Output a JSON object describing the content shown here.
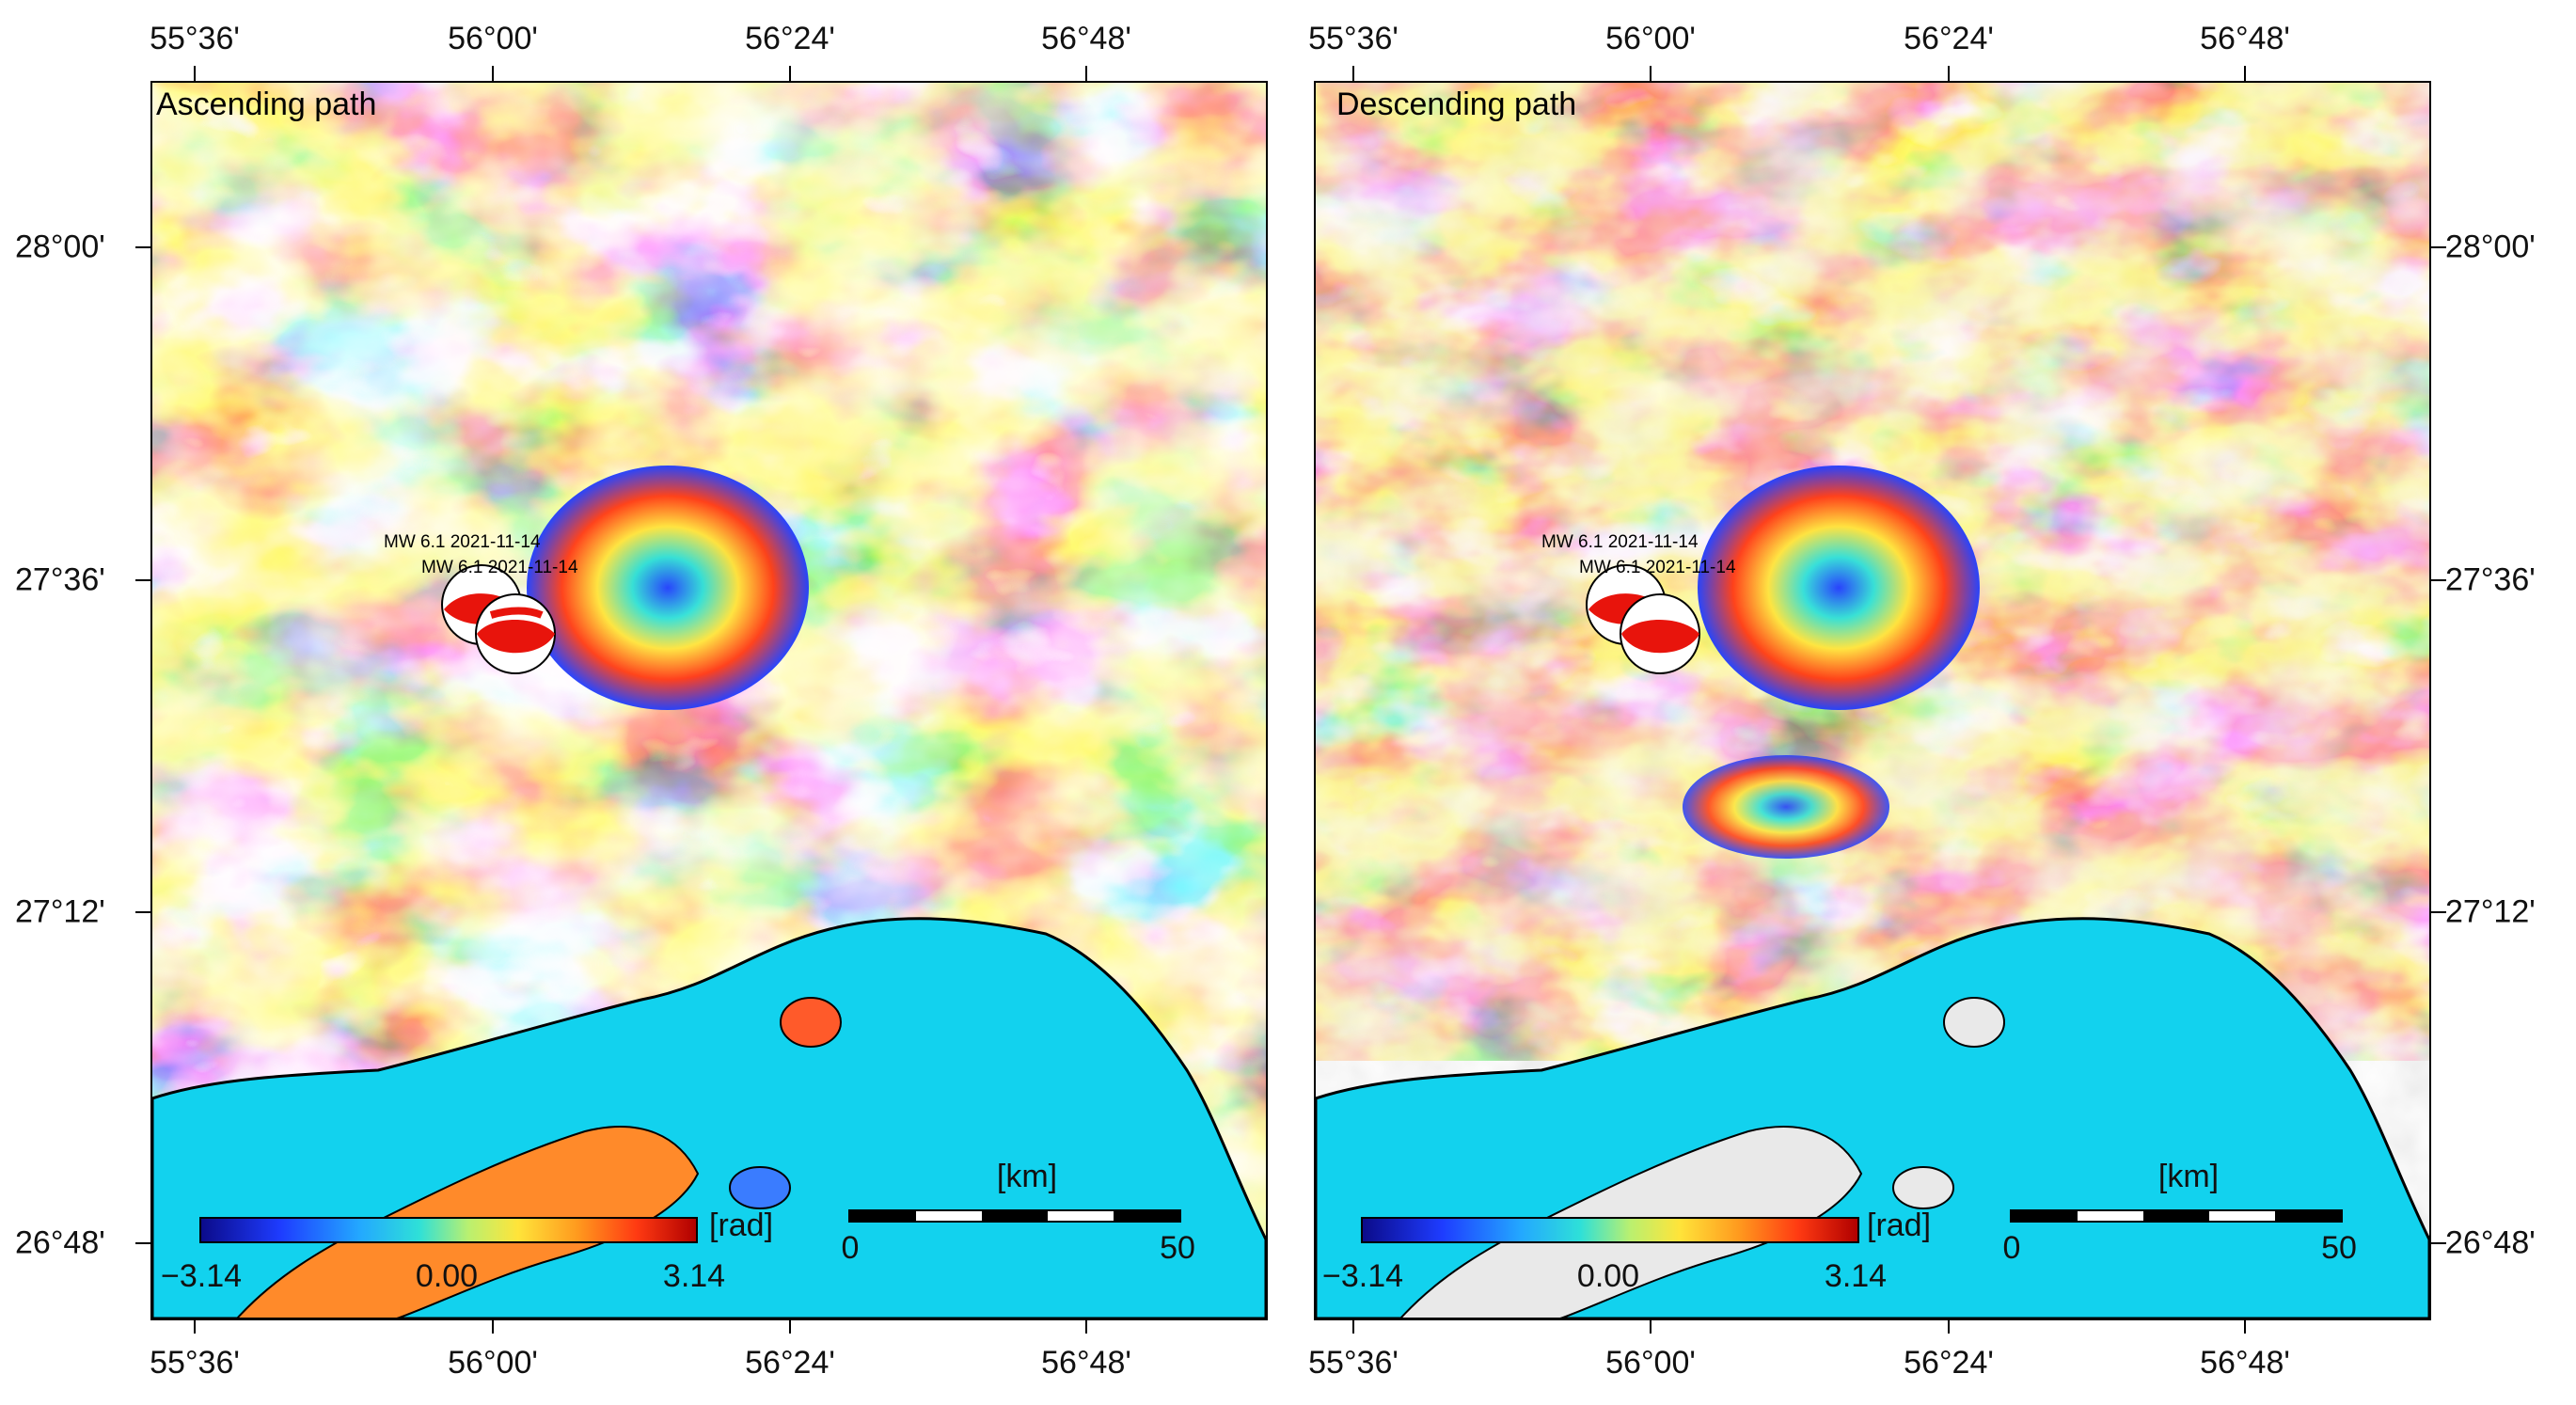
{
  "panels": [
    {
      "title": "Ascending path",
      "events": [
        "MW 6.1 2021-11-14",
        "MW 6.1 2021-11-14"
      ]
    },
    {
      "title": "Descending path",
      "events": [
        "MW 6.1 2021-11-14",
        "MW 6.1 2021-11-14"
      ]
    }
  ],
  "axes": {
    "lon_ticks": [
      "55°36'",
      "56°00'",
      "56°24'",
      "56°48'"
    ],
    "lat_ticks": [
      "28°00'",
      "27°36'",
      "27°12'",
      "26°48'"
    ]
  },
  "colorbar": {
    "unit": "[rad]",
    "min_label": "−3.14",
    "mid_label": "0.00",
    "max_label": "3.14",
    "colors": [
      "#0b0b8a",
      "#1e3cff",
      "#23a8ff",
      "#2ee0d8",
      "#b9f070",
      "#ffe43a",
      "#ff9a1e",
      "#ff3a12",
      "#b00000"
    ]
  },
  "scalebar": {
    "unit": "[km]",
    "start_label": "0",
    "end_label": "50"
  },
  "colors": {
    "sea": "#12d2ee",
    "land_shaded": "#e9e9e9",
    "beachball_red": "#e8140c"
  }
}
